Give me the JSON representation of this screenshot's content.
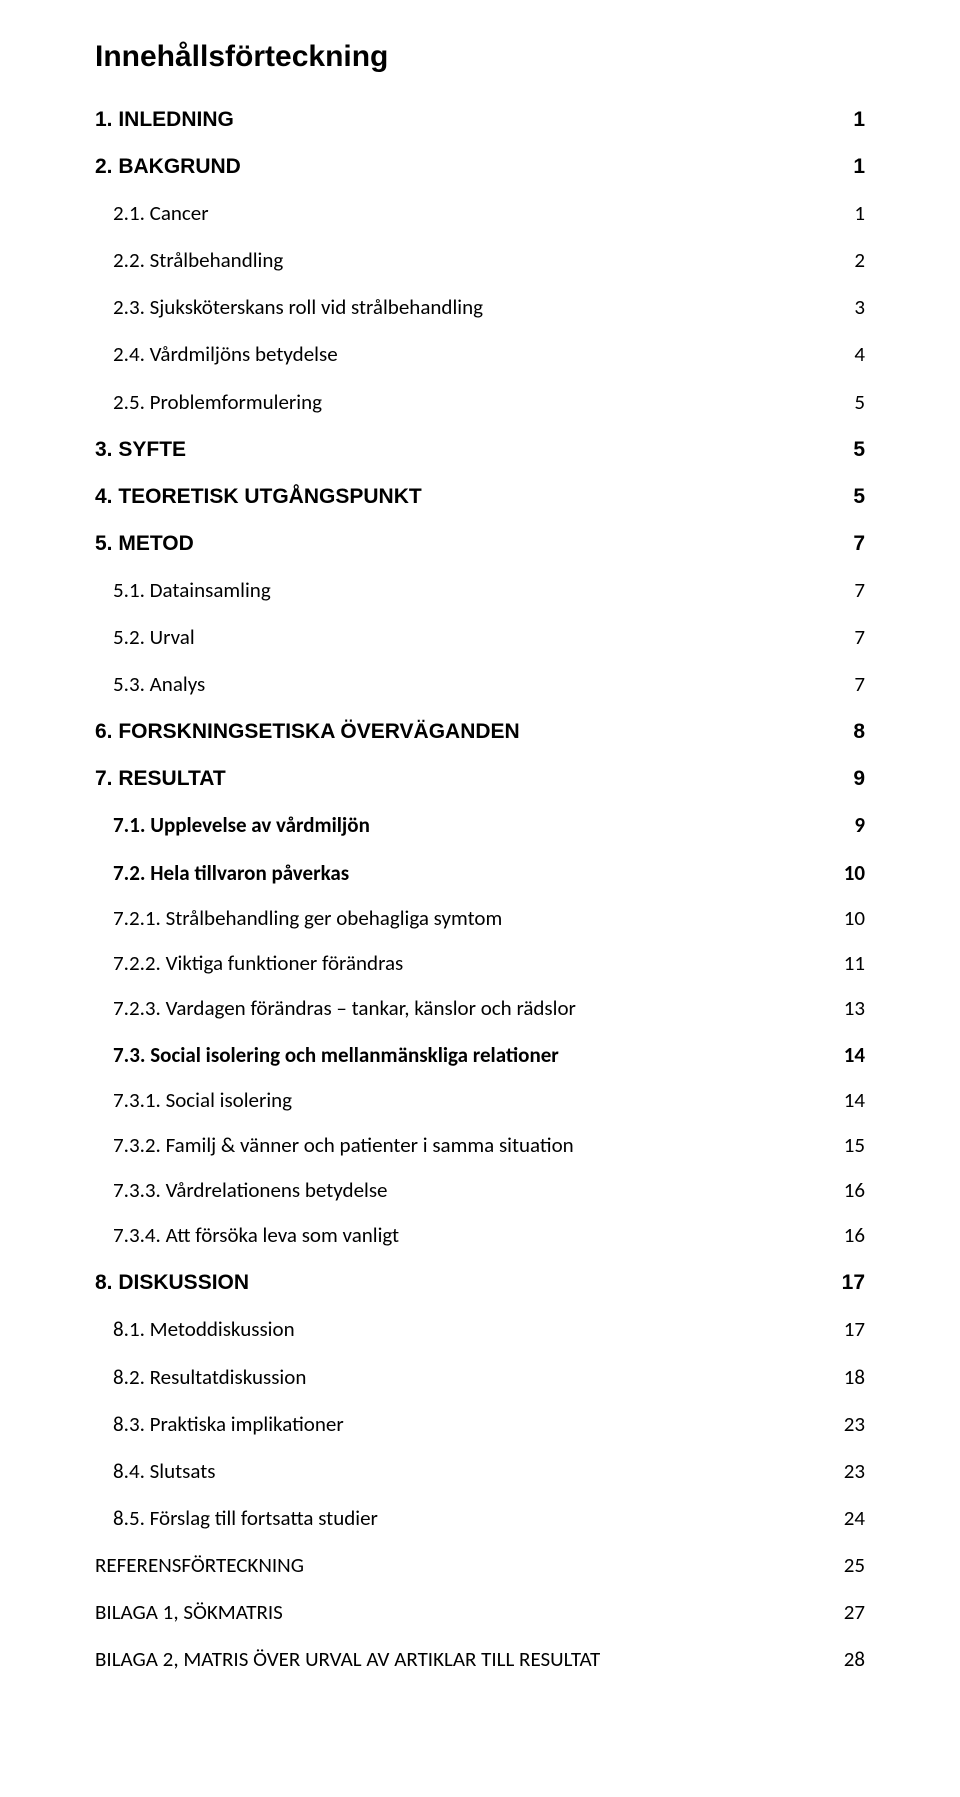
{
  "title": "Innehållsförteckning",
  "entries": [
    {
      "cls": "l1 first",
      "label": "1. INLEDNING",
      "page": "1"
    },
    {
      "cls": "l1",
      "label": "2. BAKGRUND",
      "page": "1"
    },
    {
      "cls": "l2",
      "label": "2.1. Cancer",
      "page": "1"
    },
    {
      "cls": "l2",
      "label": "2.2. Strålbehandling",
      "page": "2"
    },
    {
      "cls": "l2",
      "label": "2.3. Sjuksköterskans roll vid strålbehandling",
      "page": "3"
    },
    {
      "cls": "l2",
      "label": "2.4. Vårdmiljöns betydelse",
      "page": "4"
    },
    {
      "cls": "l2",
      "label": "2.5. Problemformulering",
      "page": "5"
    },
    {
      "cls": "l1",
      "label": "3. SYFTE",
      "page": "5"
    },
    {
      "cls": "l1",
      "label": "4. TEORETISK UTGÅNGSPUNKT",
      "page": "5"
    },
    {
      "cls": "l1",
      "label": "5. METOD",
      "page": "7"
    },
    {
      "cls": "l2",
      "label": "5.1. Datainsamling",
      "page": "7"
    },
    {
      "cls": "l2",
      "label": "5.2. Urval",
      "page": "7"
    },
    {
      "cls": "l2",
      "label": "5.3. Analys",
      "page": "7"
    },
    {
      "cls": "l1",
      "label": "6. FORSKNINGSETISKA ÖVERVÄGANDEN",
      "page": "8"
    },
    {
      "cls": "l1",
      "label": "7. RESULTAT",
      "page": "9"
    },
    {
      "cls": "l2b",
      "label": "7.1. Upplevelse av vårdmiljön",
      "page": "9"
    },
    {
      "cls": "l2b",
      "label": "7.2. Hela tillvaron påverkas",
      "page": "10"
    },
    {
      "cls": "l3",
      "label": "7.2.1. Strålbehandling ger obehagliga symtom",
      "page": "10"
    },
    {
      "cls": "l3",
      "label": "7.2.2. Viktiga funktioner förändras",
      "page": "11"
    },
    {
      "cls": "l3",
      "label": "7.2.3. Vardagen förändras – tankar, känslor och rädslor",
      "page": "13"
    },
    {
      "cls": "l2b",
      "label": "7.3. Social isolering och mellanmänskliga relationer",
      "page": "14"
    },
    {
      "cls": "l3",
      "label": "7.3.1. Social isolering",
      "page": "14"
    },
    {
      "cls": "l3",
      "label": "7.3.2. Familj & vänner och patienter i samma situation",
      "page": "15"
    },
    {
      "cls": "l3",
      "label": "7.3.3. Vårdrelationens betydelse",
      "page": "16"
    },
    {
      "cls": "l3",
      "label": "7.3.4. Att försöka leva som vanligt",
      "page": "16"
    },
    {
      "cls": "l1",
      "label": "8. DISKUSSION",
      "page": "17"
    },
    {
      "cls": "l2",
      "label": "8.1. Metoddiskussion",
      "page": "17"
    },
    {
      "cls": "l2",
      "label": "8.2. Resultatdiskussion",
      "page": "18"
    },
    {
      "cls": "l2",
      "label": "8.3. Praktiska implikationer",
      "page": "23"
    },
    {
      "cls": "l2",
      "label": "8.4. Slutsats",
      "page": "23"
    },
    {
      "cls": "l2",
      "label": "8.5. Förslag till fortsatta studier",
      "page": "24"
    },
    {
      "cls": "l1p",
      "label": "REFERENSFÖRTECKNING",
      "page": "25"
    },
    {
      "cls": "l1p",
      "label": "BILAGA 1, SÖKMATRIS",
      "page": "27"
    },
    {
      "cls": "l1p",
      "label": "BILAGA 2, MATRIS ÖVER URVAL AV ARTIKLAR TILL RESULTAT",
      "page": "28"
    }
  ]
}
